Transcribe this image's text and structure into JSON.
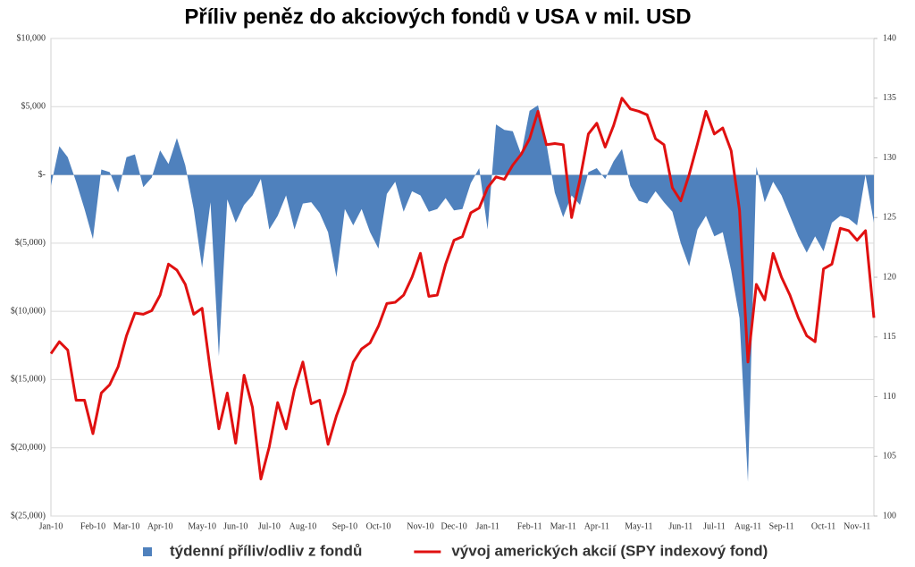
{
  "chart_data": {
    "type": "area-line",
    "title": "Příliv peněz do akciových fondů v USA v mil. USD",
    "categories": [
      "Jan-10",
      null,
      null,
      null,
      null,
      "Feb-10",
      null,
      null,
      null,
      "Mar-10",
      null,
      null,
      null,
      "Apr-10",
      null,
      null,
      null,
      null,
      "May-10",
      null,
      null,
      null,
      "Jun-10",
      null,
      null,
      null,
      "Jul-10",
      null,
      null,
      null,
      "Aug-10",
      null,
      null,
      null,
      null,
      "Sep-10",
      null,
      null,
      null,
      "Oct-10",
      null,
      null,
      null,
      null,
      "Nov-10",
      null,
      null,
      null,
      "Dec-10",
      null,
      null,
      null,
      "Jan-11",
      null,
      null,
      null,
      null,
      "Feb-11",
      null,
      null,
      null,
      "Mar-11",
      null,
      null,
      null,
      "Apr-11",
      null,
      null,
      null,
      null,
      "May-11",
      null,
      null,
      null,
      null,
      "Jun-11",
      null,
      null,
      null,
      "Jul-11",
      null,
      null,
      null,
      "Aug-11",
      null,
      null,
      null,
      "Sep-11",
      null,
      null,
      null,
      null,
      "Oct-11",
      null,
      null,
      null,
      "Nov-11",
      null,
      null
    ],
    "series": [
      {
        "name": "týdenní příliv/odliv z fondů",
        "type": "area",
        "color": "#4f81bd",
        "axis": "y",
        "values": [
          -800,
          2100,
          1300,
          -500,
          -2500,
          -4700,
          400,
          200,
          -1300,
          1300,
          1500,
          -900,
          -200,
          1800,
          800,
          2700,
          700,
          -2500,
          -6800,
          -2000,
          -13300,
          -1800,
          -3500,
          -2200,
          -1500,
          -300,
          -4000,
          -3000,
          -1500,
          -4000,
          -2100,
          -2000,
          -2800,
          -4200,
          -7500,
          -2500,
          -3700,
          -2500,
          -4200,
          -5400,
          -1400,
          -500,
          -2700,
          -1200,
          -1500,
          -2700,
          -2500,
          -1700,
          -2600,
          -2500,
          -600,
          500,
          -4000,
          3700,
          3300,
          3200,
          1500,
          4700,
          5100,
          2300,
          -1300,
          -3100,
          -1500,
          -2200,
          200,
          500,
          -300,
          1000,
          1900,
          -800,
          -1900,
          -2100,
          -1200,
          -2000,
          -2700,
          -5000,
          -6700,
          -4000,
          -3000,
          -4500,
          -4200,
          -7000,
          -10500,
          -22500,
          600,
          -2000,
          -500,
          -1500,
          -3000,
          -4500,
          -5700,
          -4500,
          -5600,
          -3500,
          -3000,
          -3200,
          -3700,
          0,
          -3500
        ]
      },
      {
        "name": "vývoj amerických akcií (SPY indexový fond)",
        "type": "line",
        "color": "#e01010",
        "axis": "y2",
        "values": [
          113.6,
          114.6,
          113.9,
          109.7,
          109.7,
          106.9,
          110.3,
          111,
          112.5,
          115.1,
          117,
          116.9,
          117.2,
          118.5,
          121.1,
          120.6,
          119.4,
          116.9,
          117.4,
          112.1,
          107.3,
          110.3,
          106.1,
          111.8,
          109.1,
          103.1,
          105.8,
          109.5,
          107.3,
          110.6,
          112.9,
          109.4,
          109.7,
          106,
          108.4,
          110.3,
          112.9,
          114,
          114.5,
          115.9,
          117.8,
          117.9,
          118.5,
          120,
          122,
          118.4,
          118.5,
          121.1,
          123.1,
          123.4,
          125.4,
          125.8,
          127.5,
          128.4,
          128.2,
          129.4,
          130.3,
          131.6,
          133.9,
          131.1,
          131.2,
          131.1,
          125,
          128.2,
          132,
          132.9,
          130.9,
          132.7,
          135,
          134.1,
          133.9,
          133.6,
          131.6,
          131.1,
          127.5,
          126.4,
          128.6,
          131.2,
          133.9,
          132,
          132.5,
          130.6,
          125.6,
          112.9,
          119.4,
          118.1,
          122,
          120,
          118.5,
          116.6,
          115.1,
          114.6,
          120.7,
          121.1,
          124.1,
          123.9,
          123.1,
          123.9,
          116.6
        ]
      }
    ],
    "ylim": [
      -25000,
      10000
    ],
    "yticks": [
      {
        "value": -25000,
        "label": "$(25,000)"
      },
      {
        "value": -20000,
        "label": "$(20,000)"
      },
      {
        "value": -15000,
        "label": "$(15,000)"
      },
      {
        "value": -10000,
        "label": "$(10,000)"
      },
      {
        "value": -5000,
        "label": "$(5,000)"
      },
      {
        "value": 0,
        "label": "$-"
      },
      {
        "value": 5000,
        "label": "$5,000"
      },
      {
        "value": 10000,
        "label": "$10,000"
      }
    ],
    "y2lim": [
      100,
      140
    ],
    "y2ticks": [
      100,
      105,
      110,
      115,
      120,
      125,
      130,
      135,
      140
    ],
    "grid": true,
    "legend": "bottom"
  }
}
